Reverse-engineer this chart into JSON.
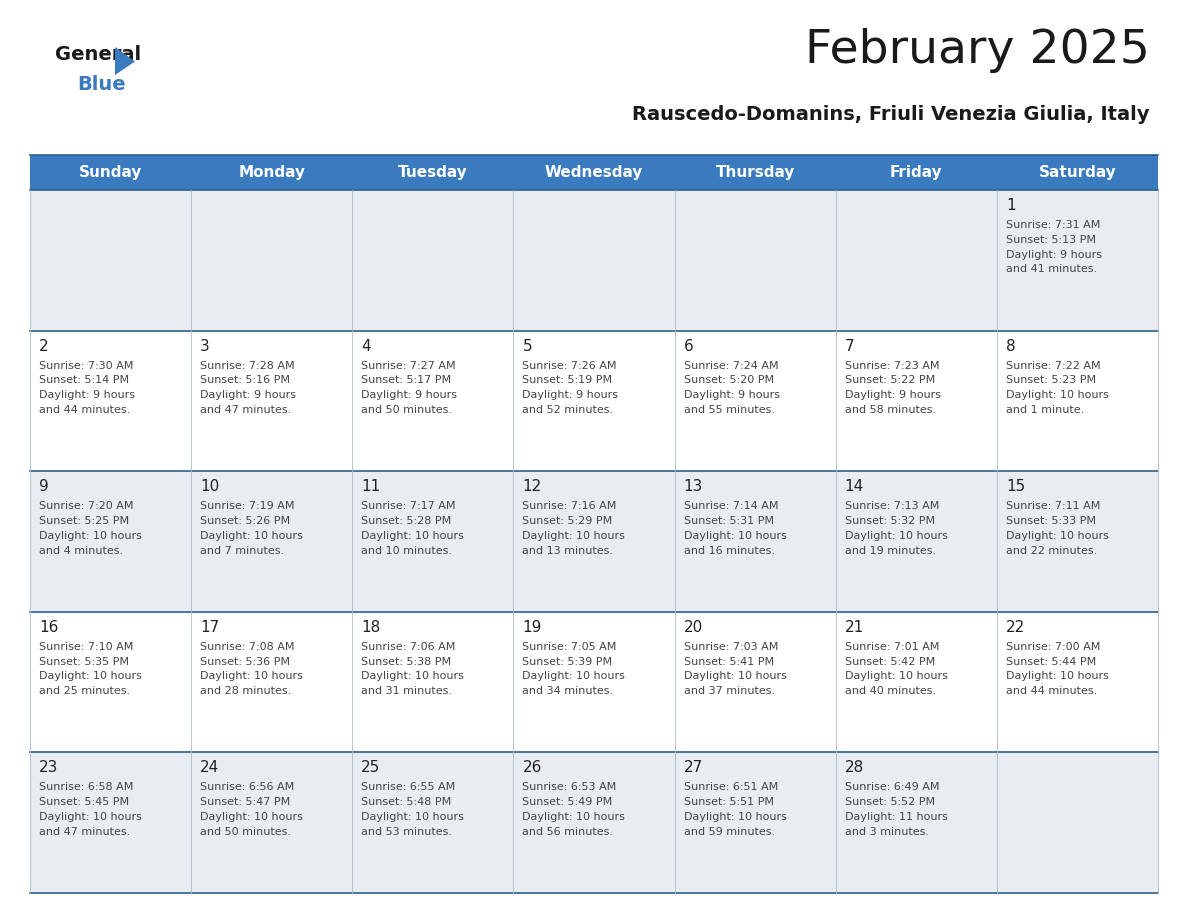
{
  "title": "February 2025",
  "subtitle": "Rauscedo-Domanins, Friuli Venezia Giulia, Italy",
  "header_bg": "#3a7abf",
  "header_text": "#ffffff",
  "cell_bg_light": "#e8edf2",
  "cell_bg_white": "#ffffff",
  "row_bg_pattern": [
    1,
    0,
    1,
    0,
    1
  ],
  "day_names": [
    "Sunday",
    "Monday",
    "Tuesday",
    "Wednesday",
    "Thursday",
    "Friday",
    "Saturday"
  ],
  "days": [
    {
      "day": 1,
      "col": 6,
      "row": 0,
      "sunrise": "7:31 AM",
      "sunset": "5:13 PM",
      "daylight": "9 hours and 41 minutes."
    },
    {
      "day": 2,
      "col": 0,
      "row": 1,
      "sunrise": "7:30 AM",
      "sunset": "5:14 PM",
      "daylight": "9 hours and 44 minutes."
    },
    {
      "day": 3,
      "col": 1,
      "row": 1,
      "sunrise": "7:28 AM",
      "sunset": "5:16 PM",
      "daylight": "9 hours and 47 minutes."
    },
    {
      "day": 4,
      "col": 2,
      "row": 1,
      "sunrise": "7:27 AM",
      "sunset": "5:17 PM",
      "daylight": "9 hours and 50 minutes."
    },
    {
      "day": 5,
      "col": 3,
      "row": 1,
      "sunrise": "7:26 AM",
      "sunset": "5:19 PM",
      "daylight": "9 hours and 52 minutes."
    },
    {
      "day": 6,
      "col": 4,
      "row": 1,
      "sunrise": "7:24 AM",
      "sunset": "5:20 PM",
      "daylight": "9 hours and 55 minutes."
    },
    {
      "day": 7,
      "col": 5,
      "row": 1,
      "sunrise": "7:23 AM",
      "sunset": "5:22 PM",
      "daylight": "9 hours and 58 minutes."
    },
    {
      "day": 8,
      "col": 6,
      "row": 1,
      "sunrise": "7:22 AM",
      "sunset": "5:23 PM",
      "daylight": "10 hours and 1 minute."
    },
    {
      "day": 9,
      "col": 0,
      "row": 2,
      "sunrise": "7:20 AM",
      "sunset": "5:25 PM",
      "daylight": "10 hours and 4 minutes."
    },
    {
      "day": 10,
      "col": 1,
      "row": 2,
      "sunrise": "7:19 AM",
      "sunset": "5:26 PM",
      "daylight": "10 hours and 7 minutes."
    },
    {
      "day": 11,
      "col": 2,
      "row": 2,
      "sunrise": "7:17 AM",
      "sunset": "5:28 PM",
      "daylight": "10 hours and 10 minutes."
    },
    {
      "day": 12,
      "col": 3,
      "row": 2,
      "sunrise": "7:16 AM",
      "sunset": "5:29 PM",
      "daylight": "10 hours and 13 minutes."
    },
    {
      "day": 13,
      "col": 4,
      "row": 2,
      "sunrise": "7:14 AM",
      "sunset": "5:31 PM",
      "daylight": "10 hours and 16 minutes."
    },
    {
      "day": 14,
      "col": 5,
      "row": 2,
      "sunrise": "7:13 AM",
      "sunset": "5:32 PM",
      "daylight": "10 hours and 19 minutes."
    },
    {
      "day": 15,
      "col": 6,
      "row": 2,
      "sunrise": "7:11 AM",
      "sunset": "5:33 PM",
      "daylight": "10 hours and 22 minutes."
    },
    {
      "day": 16,
      "col": 0,
      "row": 3,
      "sunrise": "7:10 AM",
      "sunset": "5:35 PM",
      "daylight": "10 hours and 25 minutes."
    },
    {
      "day": 17,
      "col": 1,
      "row": 3,
      "sunrise": "7:08 AM",
      "sunset": "5:36 PM",
      "daylight": "10 hours and 28 minutes."
    },
    {
      "day": 18,
      "col": 2,
      "row": 3,
      "sunrise": "7:06 AM",
      "sunset": "5:38 PM",
      "daylight": "10 hours and 31 minutes."
    },
    {
      "day": 19,
      "col": 3,
      "row": 3,
      "sunrise": "7:05 AM",
      "sunset": "5:39 PM",
      "daylight": "10 hours and 34 minutes."
    },
    {
      "day": 20,
      "col": 4,
      "row": 3,
      "sunrise": "7:03 AM",
      "sunset": "5:41 PM",
      "daylight": "10 hours and 37 minutes."
    },
    {
      "day": 21,
      "col": 5,
      "row": 3,
      "sunrise": "7:01 AM",
      "sunset": "5:42 PM",
      "daylight": "10 hours and 40 minutes."
    },
    {
      "day": 22,
      "col": 6,
      "row": 3,
      "sunrise": "7:00 AM",
      "sunset": "5:44 PM",
      "daylight": "10 hours and 44 minutes."
    },
    {
      "day": 23,
      "col": 0,
      "row": 4,
      "sunrise": "6:58 AM",
      "sunset": "5:45 PM",
      "daylight": "10 hours and 47 minutes."
    },
    {
      "day": 24,
      "col": 1,
      "row": 4,
      "sunrise": "6:56 AM",
      "sunset": "5:47 PM",
      "daylight": "10 hours and 50 minutes."
    },
    {
      "day": 25,
      "col": 2,
      "row": 4,
      "sunrise": "6:55 AM",
      "sunset": "5:48 PM",
      "daylight": "10 hours and 53 minutes."
    },
    {
      "day": 26,
      "col": 3,
      "row": 4,
      "sunrise": "6:53 AM",
      "sunset": "5:49 PM",
      "daylight": "10 hours and 56 minutes."
    },
    {
      "day": 27,
      "col": 4,
      "row": 4,
      "sunrise": "6:51 AM",
      "sunset": "5:51 PM",
      "daylight": "10 hours and 59 minutes."
    },
    {
      "day": 28,
      "col": 5,
      "row": 4,
      "sunrise": "6:49 AM",
      "sunset": "5:52 PM",
      "daylight": "11 hours and 3 minutes."
    }
  ],
  "logo_text_general": "General",
  "logo_text_blue": "Blue",
  "logo_color_general": "#1a1a1a",
  "logo_color_blue": "#3a7abf",
  "logo_triangle_color": "#3a7abf",
  "row_line_color": "#2e5d8e",
  "col_line_color": "#b0b8c8",
  "text_color": "#444444",
  "day_number_color": "#222222",
  "title_color": "#1a1a1a",
  "subtitle_color": "#1a1a1a",
  "fig_width": 11.88,
  "fig_height": 9.18,
  "dpi": 100
}
